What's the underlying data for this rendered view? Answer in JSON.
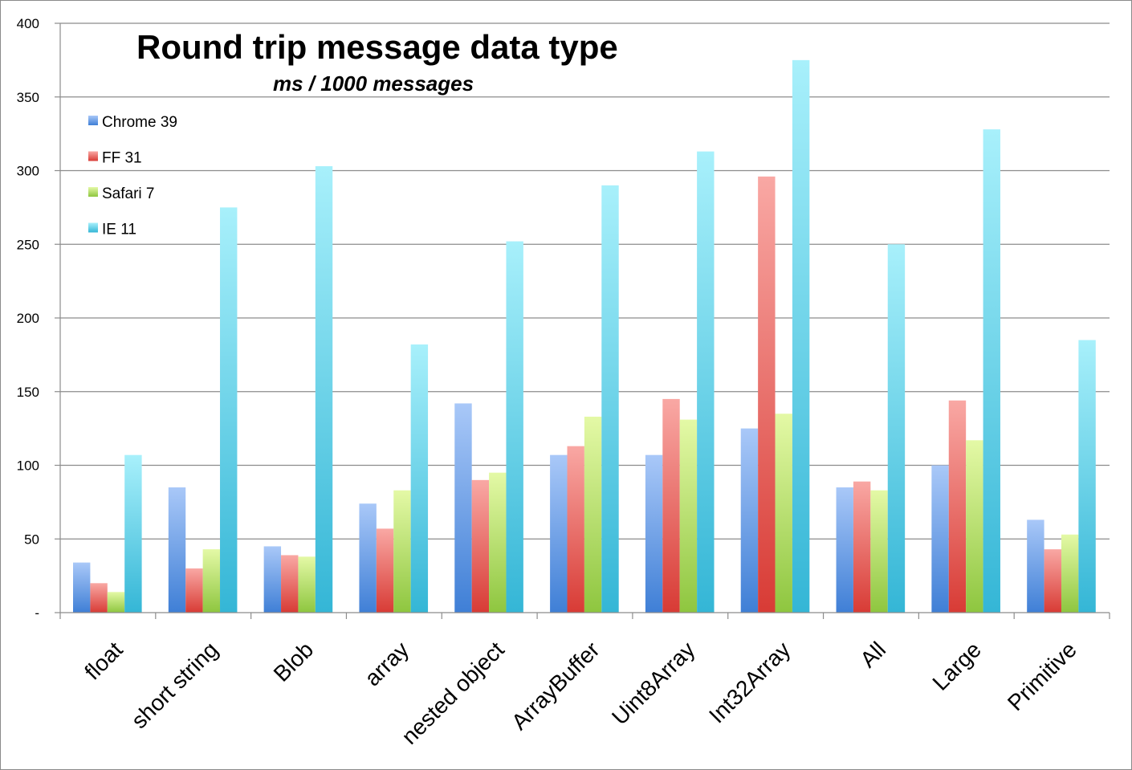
{
  "chart_data": {
    "type": "bar",
    "title": "Round trip message data type",
    "subtitle": "ms / 1000 messages",
    "xlabel": "",
    "ylabel": "",
    "ylim": [
      0,
      400
    ],
    "yticks": [
      {
        "value": 0,
        "label": "-"
      },
      {
        "value": 50,
        "label": "50"
      },
      {
        "value": 100,
        "label": "100"
      },
      {
        "value": 150,
        "label": "150"
      },
      {
        "value": 200,
        "label": "200"
      },
      {
        "value": 250,
        "label": "250"
      },
      {
        "value": 300,
        "label": "300"
      },
      {
        "value": 350,
        "label": "350"
      },
      {
        "value": 400,
        "label": "400"
      }
    ],
    "grid": true,
    "legend_position": "top-left",
    "categories": [
      "float",
      "short string",
      "Blob",
      "array",
      "nested object",
      "ArrayBuffer",
      "Uint8Array",
      "Int32Array",
      "All",
      "Large",
      "Primitive"
    ],
    "series": [
      {
        "name": "Chrome 39",
        "color_top": "#a9c8f8",
        "color_bottom": "#3f7fd6",
        "values": [
          34,
          85,
          45,
          74,
          142,
          107,
          107,
          125,
          85,
          100,
          63
        ]
      },
      {
        "name": "FF 31",
        "color_top": "#f9a8a4",
        "color_bottom": "#d83b35",
        "values": [
          20,
          30,
          39,
          57,
          90,
          113,
          145,
          296,
          89,
          144,
          43
        ]
      },
      {
        "name": "Safari 7",
        "color_top": "#e4f9a6",
        "color_bottom": "#8ec63f",
        "values": [
          14,
          43,
          38,
          83,
          95,
          133,
          131,
          135,
          83,
          117,
          53
        ]
      },
      {
        "name": "IE 11",
        "color_top": "#a8f0fb",
        "color_bottom": "#34b6d6",
        "values": [
          107,
          275,
          303,
          182,
          252,
          290,
          313,
          375,
          250,
          328,
          185
        ]
      }
    ]
  }
}
